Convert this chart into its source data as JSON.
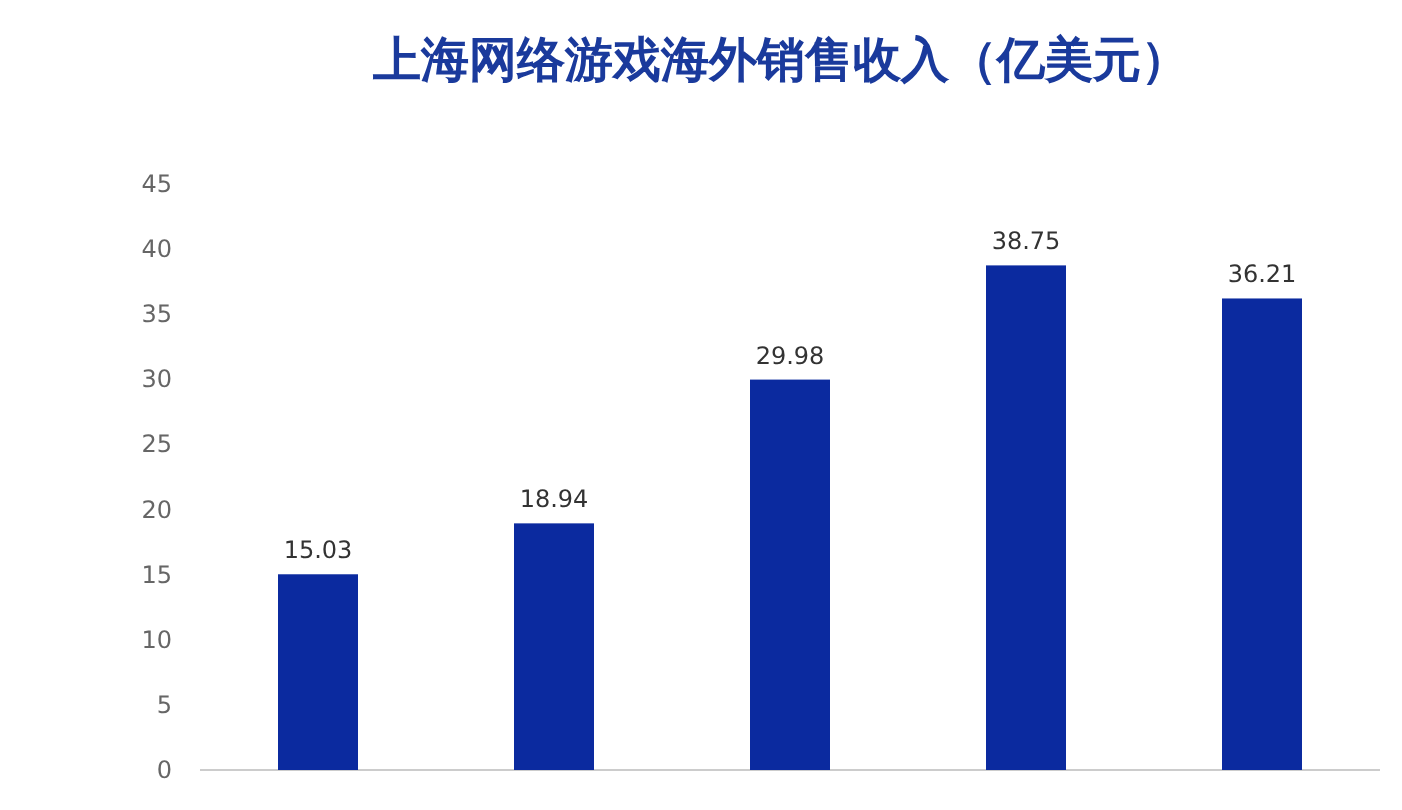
{
  "chart_data": {
    "type": "bar",
    "title": "上海网络游戏海外销售收入（亿美元）",
    "categories": [
      null,
      null,
      null,
      null,
      null
    ],
    "values": [
      15.03,
      18.94,
      29.98,
      38.75,
      36.21
    ],
    "color": "#0b2a9f",
    "ylim": [
      0,
      45
    ],
    "yticks": [
      0,
      5,
      10,
      15,
      20,
      25,
      30,
      35,
      40,
      45
    ],
    "data_labels": true
  }
}
